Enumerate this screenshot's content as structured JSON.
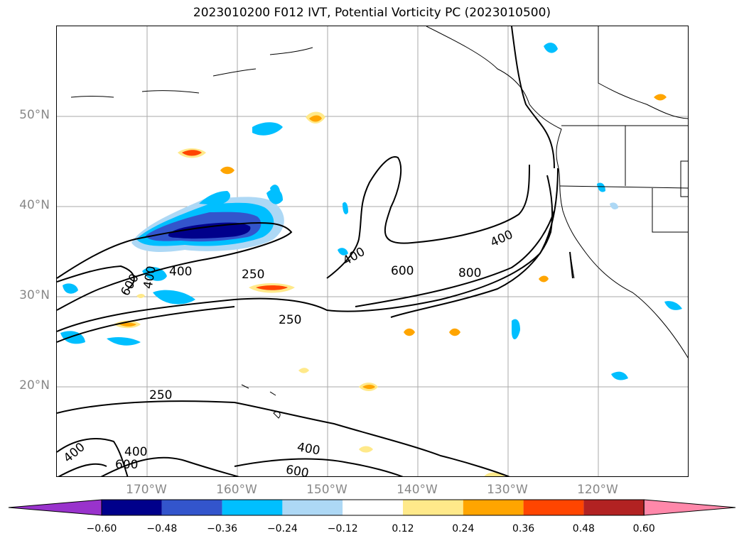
{
  "title": "2023010200 F012 IVT, Potential Vorticity PC (2023010500)",
  "latitude_labels": [
    "50°N",
    "40°N",
    "30°N",
    "20°N"
  ],
  "longitude_labels": [
    "170°W",
    "160°W",
    "150°W",
    "140°W",
    "130°W",
    "120°W"
  ],
  "contour_labels": [
    {
      "text": "400"
    },
    {
      "text": "600"
    },
    {
      "text": "400"
    },
    {
      "text": "400"
    },
    {
      "text": "250"
    },
    {
      "text": "600"
    },
    {
      "text": "800"
    },
    {
      "text": "400"
    },
    {
      "text": "250"
    },
    {
      "text": "250"
    },
    {
      "text": "400"
    },
    {
      "text": "600"
    },
    {
      "text": "400"
    },
    {
      "text": "600"
    },
    {
      "text": "400"
    }
  ],
  "colorbar": {
    "ticks": [
      "−0.60",
      "−0.48",
      "−0.36",
      "−0.24",
      "−0.12",
      "0.12",
      "0.24",
      "0.36",
      "0.48",
      "0.60"
    ],
    "colors": [
      "#9933cc",
      "#00008b",
      "#3355cc",
      "#00bfff",
      "#add8f5",
      "#ffffff",
      "#ffe98a",
      "#ffa500",
      "#ff4500",
      "#b22222",
      "#ff88aa"
    ]
  }
}
